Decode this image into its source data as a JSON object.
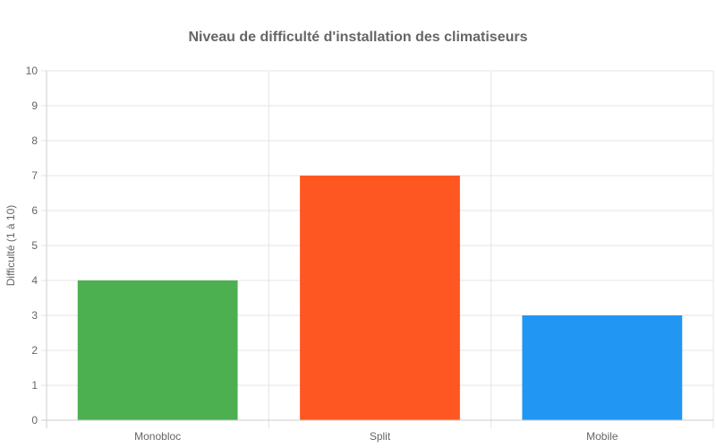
{
  "chart_data": {
    "type": "bar",
    "title": "Niveau de difficulté d'installation des climatiseurs",
    "xlabel": "",
    "ylabel": "Difficulté (1 à 10)",
    "categories": [
      "Monobloc",
      "Split",
      "Mobile"
    ],
    "values": [
      4,
      7,
      3
    ],
    "colors": [
      "#4caf50",
      "#ff5722",
      "#2196f3"
    ],
    "ylim": [
      0,
      10
    ],
    "yticks": [
      0,
      1,
      2,
      3,
      4,
      5,
      6,
      7,
      8,
      9,
      10
    ],
    "grid": true,
    "legend": "none"
  }
}
